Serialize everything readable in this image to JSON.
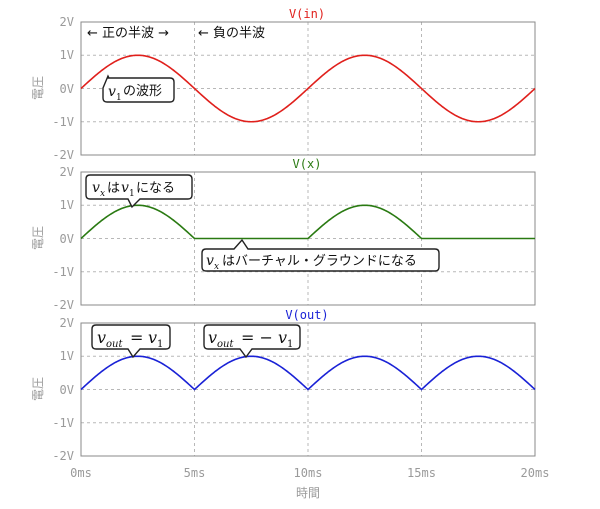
{
  "chart_data": [
    {
      "type": "line",
      "title": "V(in)",
      "title_color": "#e0201c",
      "ylabel": "電圧",
      "ylim": [
        -2,
        2
      ],
      "yticks": [
        "-2V",
        "-1V",
        "0V",
        "1V",
        "2V"
      ],
      "xlim": [
        0,
        20
      ],
      "series": [
        {
          "color": "#e0201c",
          "x": [
            0,
            1.25,
            2.5,
            3.75,
            5,
            6.25,
            7.5,
            8.75,
            10,
            11.25,
            12.5,
            13.75,
            15,
            16.25,
            17.5,
            18.75,
            20
          ],
          "values": [
            0,
            0.71,
            1,
            0.71,
            0,
            -0.71,
            -1,
            -0.71,
            0,
            0.71,
            1,
            0.71,
            0,
            -0.71,
            -1,
            -0.71,
            0
          ]
        }
      ],
      "annotations": {
        "pos_half": "← 正の半波 →",
        "neg_half": "← 負の半波",
        "wave_v": "v",
        "wave_sub": "1",
        "wave_text": "の波形"
      }
    },
    {
      "type": "line",
      "title": "V(x)",
      "title_color": "#2a7a12",
      "ylabel": "電圧",
      "ylim": [
        -2,
        2
      ],
      "yticks": [
        "-2V",
        "-1V",
        "0V",
        "1V",
        "2V"
      ],
      "xlim": [
        0,
        20
      ],
      "series": [
        {
          "color": "#2a7a12",
          "x": [
            0,
            1.25,
            2.5,
            3.75,
            5,
            10,
            11.25,
            12.5,
            13.75,
            15,
            20
          ],
          "values": [
            0,
            0.71,
            1,
            0.71,
            0,
            0,
            0.71,
            1,
            0.71,
            0,
            0
          ]
        }
      ],
      "annotations": {
        "c1_v": "v",
        "c1_sub": "x",
        "c1_ha": "は",
        "c1_v2": "v",
        "c1_sub2": "1",
        "c1_tail": "になる",
        "c2_v": "v",
        "c2_sub": "x",
        "c2_tail": "はバーチャル・グラウンドになる"
      }
    },
    {
      "type": "line",
      "title": "V(out)",
      "title_color": "#1a22d6",
      "ylabel": "電圧",
      "xlabel": "時間",
      "ylim": [
        -2,
        2
      ],
      "yticks": [
        "-2V",
        "-1V",
        "0V",
        "1V",
        "2V"
      ],
      "xlim": [
        0,
        20
      ],
      "xticks": [
        "0ms",
        "5ms",
        "10ms",
        "15ms",
        "20ms"
      ],
      "series": [
        {
          "color": "#1a22d6",
          "x": [
            0,
            1.25,
            2.5,
            3.75,
            5,
            6.25,
            7.5,
            8.75,
            10,
            11.25,
            12.5,
            13.75,
            15,
            16.25,
            17.5,
            18.75,
            20
          ],
          "values": [
            0,
            0.71,
            1,
            0.71,
            0,
            0.71,
            1,
            0.71,
            0,
            0.71,
            1,
            0.71,
            0,
            0.71,
            1,
            0.71,
            0
          ]
        }
      ],
      "annotations": {
        "c1_v": "v",
        "c1_sub": "out",
        "c1_eq": "=",
        "c1_v2": "v",
        "c1_sub2": "1",
        "c2_v": "v",
        "c2_sub": "out",
        "c2_eq": "= −",
        "c2_v2": "v",
        "c2_sub2": "1"
      }
    }
  ]
}
